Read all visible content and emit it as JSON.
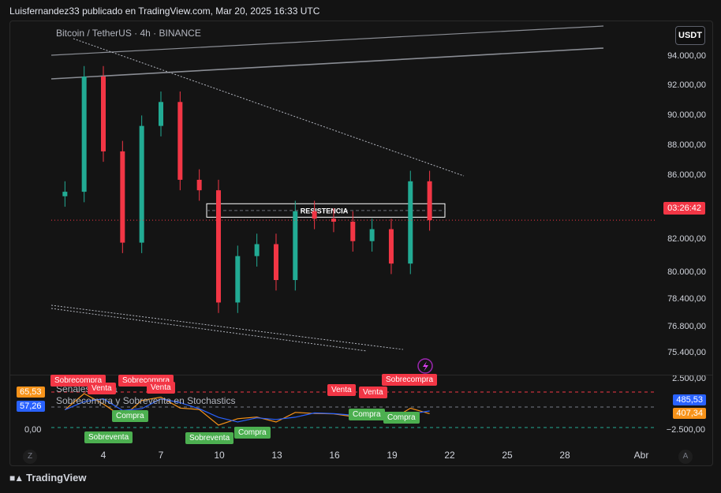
{
  "caption": "Luisfernandez33 publicado en TradingView.com, Mar 20, 2025 16:33 UTC",
  "brand": "TradingView",
  "colors": {
    "up": "#22ab94",
    "down": "#f23645",
    "background": "#141414"
  },
  "chart_data": [
    {
      "type": "candlestick",
      "title": "Bitcoin / TetherUS · 4h · BINANCE",
      "currency": "USDT",
      "y_ticks": [
        "94.000,00",
        "92.000,00",
        "90.000,00",
        "88.000,00",
        "86.000,00",
        "82.000,00",
        "80.000,00",
        "78.400,00",
        "76.800,00",
        "75.400,00",
        "2.500,00"
      ],
      "countdown": "03:26:42",
      "annotation": "RESISTENCIA",
      "x_tick_labels": [
        "4",
        "7",
        "10",
        "13",
        "16",
        "19",
        "22",
        "25",
        "28",
        "Abr"
      ],
      "resistance_zone": [
        84400,
        85300
      ],
      "x": [
        2,
        3,
        4,
        5,
        6,
        7,
        8,
        9,
        10,
        11,
        12,
        13,
        14,
        15,
        16,
        17,
        18,
        19,
        20,
        21
      ],
      "close": [
        86100,
        93800,
        88800,
        82700,
        90500,
        92100,
        86900,
        86200,
        78700,
        81800,
        82600,
        80200,
        84800,
        84300,
        84100,
        82800,
        83600,
        81300,
        86800,
        84200
      ],
      "grid": false
    },
    {
      "type": "line",
      "title": "Sobrecompra y Sobreventa en Stochastics",
      "subtitle": "Señales Venta",
      "badge_values": [
        "65,53",
        "57,26"
      ],
      "axis_values": [
        "0,00",
        "485,53",
        "407,34",
        "−2.500,00"
      ],
      "signals": [
        {
          "label": "Sobrecompra",
          "type": "sell"
        },
        {
          "label": "Venta",
          "type": "sell"
        },
        {
          "label": "Sobrecompra",
          "type": "sell"
        },
        {
          "label": "Venta",
          "type": "sell"
        },
        {
          "label": "Venta",
          "type": "sell"
        },
        {
          "label": "Venta",
          "type": "sell"
        },
        {
          "label": "Sobrecompra",
          "type": "sell"
        },
        {
          "label": "Compra",
          "type": "buy"
        },
        {
          "label": "Sobreventa",
          "type": "buy"
        },
        {
          "label": "Sobreventa",
          "type": "buy"
        },
        {
          "label": "Compra",
          "type": "buy"
        },
        {
          "label": "Compra",
          "type": "buy"
        },
        {
          "label": "Compra",
          "type": "buy"
        }
      ]
    }
  ],
  "time_controls": {
    "left": "Z",
    "right": "A"
  }
}
